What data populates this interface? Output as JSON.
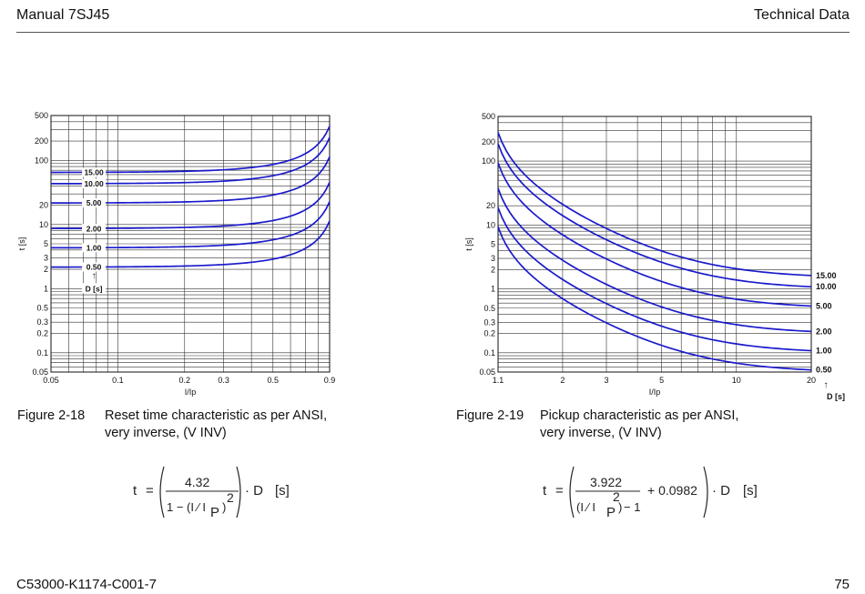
{
  "header": {
    "left": "Manual 7SJ45",
    "right": "Technical Data"
  },
  "footer": {
    "left": "C53000-K1174-C001-7",
    "right": "75"
  },
  "figure_left": {
    "number": "Figure 2-18",
    "caption_line1": "Reset time characteristic as per ANSI,",
    "caption_line2": "very inverse, (V INV)",
    "formula": {
      "lhs": "t",
      "equals": "=",
      "numerator": "4.32",
      "denominator": "1 − (I ⁄ I",
      "sub": "P",
      "close": ")",
      "power": "2",
      "times_d": "· D",
      "unit": "[s]"
    }
  },
  "figure_right": {
    "number": "Figure 2-19",
    "caption_line1": "Pickup characteristic as per ANSI,",
    "caption_line2": "very inverse, (V INV)",
    "formula": {
      "lhs": "t",
      "equals": "=",
      "numerator": "3.922",
      "den_open": "(I ⁄ I",
      "sub": "P",
      "den_close": ")",
      "power": "2",
      "den_minus": "− 1",
      "plus_const": "+ 0.0982",
      "times_d": "· D",
      "unit": "[s]"
    }
  },
  "chart_data": [
    {
      "type": "line",
      "xlabel": "I/Ip",
      "ylabel": "t [s]",
      "xscale": "log",
      "yscale": "log",
      "xlim": [
        0.05,
        0.9
      ],
      "ylim": [
        0.05,
        500
      ],
      "grid": true,
      "x_ticks": [
        "0.05",
        "0.1",
        "0.2",
        "0.3",
        "0.5",
        "0.9"
      ],
      "y_ticks": [
        "500",
        "200",
        "100",
        "20",
        "10",
        "5",
        "3",
        "2",
        "1",
        "0.5",
        "0.3",
        "0.2",
        "0.1",
        "0.05"
      ],
      "d_axis_label": "D [s]",
      "d_arrow": "↑",
      "curve_color": "#1a1acc",
      "series": [
        {
          "name": "15.00",
          "x": [
            0.05,
            0.1,
            0.2,
            0.3,
            0.4,
            0.5,
            0.6,
            0.7,
            0.8,
            0.9
          ],
          "values": [
            64.9,
            65.5,
            67.5,
            71.2,
            77.1,
            86.4,
            101.3,
            127.5,
            180.0,
            341.1
          ]
        },
        {
          "name": "10.00",
          "x": [
            0.05,
            0.1,
            0.2,
            0.3,
            0.4,
            0.5,
            0.6,
            0.7,
            0.8,
            0.9
          ],
          "values": [
            43.3,
            43.6,
            45.0,
            47.5,
            51.4,
            57.6,
            67.5,
            85.0,
            120.0,
            227.4
          ]
        },
        {
          "name": "5.00",
          "x": [
            0.05,
            0.1,
            0.2,
            0.3,
            0.4,
            0.5,
            0.6,
            0.7,
            0.8,
            0.9
          ],
          "values": [
            21.7,
            21.8,
            22.5,
            23.7,
            25.7,
            28.8,
            33.8,
            42.5,
            60.0,
            113.7
          ]
        },
        {
          "name": "2.00",
          "x": [
            0.05,
            0.1,
            0.2,
            0.3,
            0.4,
            0.5,
            0.6,
            0.7,
            0.8,
            0.9
          ],
          "values": [
            8.7,
            8.7,
            9.0,
            9.5,
            10.3,
            11.5,
            13.5,
            17.0,
            24.0,
            45.5
          ]
        },
        {
          "name": "1.00",
          "x": [
            0.05,
            0.1,
            0.2,
            0.3,
            0.4,
            0.5,
            0.6,
            0.7,
            0.8,
            0.9
          ],
          "values": [
            4.3,
            4.4,
            4.5,
            4.7,
            5.1,
            5.8,
            6.8,
            8.5,
            12.0,
            22.7
          ]
        },
        {
          "name": "0.50",
          "x": [
            0.05,
            0.1,
            0.2,
            0.3,
            0.4,
            0.5,
            0.6,
            0.7,
            0.8,
            0.9
          ],
          "values": [
            2.2,
            2.2,
            2.3,
            2.4,
            2.6,
            2.9,
            3.4,
            4.3,
            6.0,
            11.4
          ]
        }
      ]
    },
    {
      "type": "line",
      "xlabel": "I/Ip",
      "ylabel": "t [s]",
      "xscale": "log",
      "yscale": "log",
      "xlim": [
        1.1,
        20
      ],
      "ylim": [
        0.05,
        500
      ],
      "grid": true,
      "x_ticks": [
        "1.1",
        "2",
        "3",
        "5",
        "10",
        "20"
      ],
      "y_ticks": [
        "500",
        "200",
        "100",
        "20",
        "10",
        "5",
        "3",
        "2",
        "1",
        "0.5",
        "0.3",
        "0.2",
        "0.1",
        "0.05"
      ],
      "d_axis_label": "D [s]",
      "d_arrow": "↑",
      "curve_color": "#1a1acc",
      "series": [
        {
          "name": "15.00",
          "x": [
            1.1,
            1.2,
            1.5,
            2,
            3,
            4,
            5,
            7,
            10,
            15,
            20
          ],
          "values": [
            282.3,
            134.3,
            48.5,
            21.1,
            8.8,
            5.4,
            3.9,
            2.7,
            2.1,
            1.7,
            1.6
          ]
        },
        {
          "name": "10.00",
          "x": [
            1.1,
            1.2,
            1.5,
            2,
            3,
            4,
            5,
            7,
            10,
            15,
            20
          ],
          "values": [
            188.2,
            89.6,
            32.4,
            14.1,
            5.9,
            3.6,
            2.6,
            1.8,
            1.4,
            1.2,
            1.08
          ]
        },
        {
          "name": "5.00",
          "x": [
            1.1,
            1.2,
            1.5,
            2,
            3,
            4,
            5,
            7,
            10,
            15,
            20
          ],
          "values": [
            94.1,
            44.8,
            16.2,
            7.0,
            2.9,
            1.8,
            1.3,
            0.9,
            0.69,
            0.58,
            0.54
          ]
        },
        {
          "name": "2.00",
          "x": [
            1.1,
            1.2,
            1.5,
            2,
            3,
            4,
            5,
            7,
            10,
            15,
            20
          ],
          "values": [
            37.6,
            17.9,
            6.5,
            2.8,
            1.18,
            0.72,
            0.52,
            0.36,
            0.28,
            0.23,
            0.22
          ]
        },
        {
          "name": "1.00",
          "x": [
            1.1,
            1.2,
            1.5,
            2,
            3,
            4,
            5,
            7,
            10,
            15,
            20
          ],
          "values": [
            18.8,
            9.0,
            3.2,
            1.4,
            0.59,
            0.36,
            0.26,
            0.18,
            0.14,
            0.12,
            0.108
          ]
        },
        {
          "name": "0.50",
          "x": [
            1.1,
            1.2,
            1.5,
            2,
            3,
            4,
            5,
            7,
            10,
            15,
            20
          ],
          "values": [
            9.4,
            4.5,
            1.6,
            0.7,
            0.29,
            0.18,
            0.13,
            0.09,
            0.069,
            0.058,
            0.054
          ]
        }
      ]
    }
  ]
}
